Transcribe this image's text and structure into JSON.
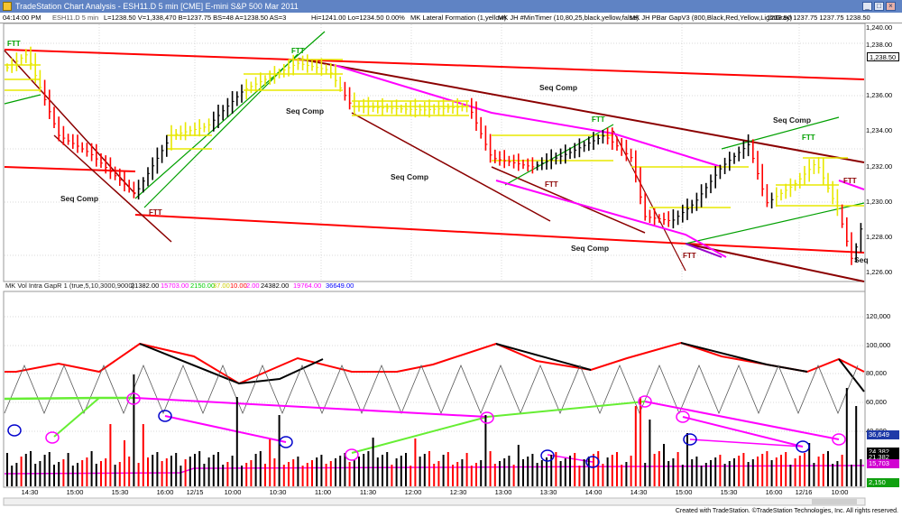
{
  "window": {
    "title": "TradeStation Chart Analysis - ESH11.D 5 min [CME] E-mini S&P 500 Mar 2011",
    "buttons": [
      "_",
      "□",
      "×"
    ]
  },
  "info_bar": {
    "time": "04:14:00 PM",
    "symbol_label": "ESH11.D 5 min",
    "values": "L=1238.50  V=1,338,470  B=1237.75  BS=48  A=1238.50  AS=3",
    "hilo": "Hi=1241.00  Lo=1234.50  0.00%",
    "study1": "MK Lateral Formation (1,yellow)",
    "study2": "MK JH #MinTimer (10,80,25,black,yellow,false)",
    "study3": "MK JH PBar GapV3 (800,Black,Red,Yellow,LightGray)",
    "study3_vals": "1238.50   1237.75   1237.75   1238.50"
  },
  "price_axis": [
    "1,240.00",
    "1,238.00",
    "1,236.00",
    "1,234.00",
    "1,232.00",
    "1,230.00",
    "1,228.00",
    "1,226.00"
  ],
  "price_tag": "1,238.50",
  "annotations": {
    "seq_comp": [
      "Seq Comp",
      "Seq Comp",
      "Seq Comp",
      "Seq Comp",
      "Seq Comp",
      "Seq Comp",
      "Seq"
    ],
    "ftt": [
      "FTT",
      "FTT",
      "FTT",
      "FTT",
      "FTT",
      "FTT",
      "FTT",
      "FTT"
    ]
  },
  "volume_panel": {
    "title": "MK Vol Intra GapR 1 (true,5,10,3000,9000)",
    "values": [
      {
        "text": "21382.00",
        "color": "#000000"
      },
      {
        "text": "15703.00",
        "color": "#ff00ff"
      },
      {
        "text": "2150.00",
        "color": "#00cc00"
      },
      {
        "text": "37.00",
        "color": "#cccc00"
      },
      {
        "text": "10.00",
        "color": "#ff0000"
      },
      {
        "text": "2.00",
        "color": "#ff00ff"
      },
      {
        "text": "24382.00",
        "color": "#000000"
      },
      {
        "text": "19764.00",
        "color": "#ff00ff"
      },
      {
        "text": "36649.00",
        "color": "#0000ff"
      }
    ],
    "axis": [
      "120,000",
      "100,000",
      "80,000",
      "60,000",
      "40,000"
    ],
    "tags": [
      {
        "text": "36,649",
        "color": "#1f3aa8"
      },
      {
        "text": "24,382",
        "color": "#000000"
      },
      {
        "text": "21,382",
        "color": "#000000"
      },
      {
        "text": "15,703",
        "color": "#d100d1"
      },
      {
        "text": "2,150",
        "color": "#10a010"
      }
    ]
  },
  "time_axis": [
    "14:30",
    "15:00",
    "15:30",
    "16:00",
    "12/15",
    "10:00",
    "10:30",
    "11:00",
    "11:30",
    "12:00",
    "12:30",
    "13:00",
    "13:30",
    "14:00",
    "14:30",
    "15:00",
    "15:30",
    "16:00",
    "12/16",
    "10:00"
  ],
  "footer": "Created with TradeStation. ©TradeStation Technologies, Inc. All rights reserved.",
  "colors": {
    "up_bar": "#000000",
    "down_bar": "#ff0000",
    "lateral": "#ffff00",
    "channel_dark": "#8b0000",
    "channel_red": "#ff0000",
    "channel_green": "#00a000",
    "magenta": "#ff00ff",
    "title_bar": "#5f83c4"
  }
}
